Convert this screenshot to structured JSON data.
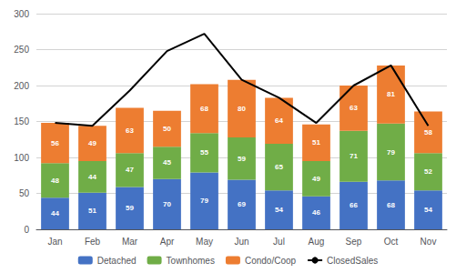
{
  "chart_data": {
    "type": "bar",
    "categories": [
      "Jan",
      "Feb",
      "Mar",
      "Apr",
      "May",
      "Jun",
      "Jul",
      "Aug",
      "Sep",
      "Oct",
      "Nov"
    ],
    "series": [
      {
        "name": "Detached",
        "type": "bar",
        "color": "#4472C4",
        "data_labels": true,
        "values": [
          44,
          51,
          59,
          70,
          79,
          69,
          54,
          46,
          66,
          68,
          54
        ]
      },
      {
        "name": "Townhomes",
        "type": "bar",
        "color": "#70AD47",
        "data_labels": true,
        "values": [
          48,
          44,
          47,
          45,
          55,
          59,
          65,
          49,
          71,
          79,
          52
        ]
      },
      {
        "name": "Condo/Coop",
        "type": "bar",
        "color": "#ED7D31",
        "data_labels": true,
        "values": [
          56,
          49,
          63,
          50,
          68,
          80,
          64,
          51,
          63,
          81,
          58
        ]
      },
      {
        "name": "ClosedSales",
        "type": "line",
        "color": "#000000",
        "data_labels": false,
        "values": [
          148,
          144,
          193,
          248,
          272,
          208,
          183,
          148,
          200,
          228,
          144
        ]
      }
    ],
    "stacked": true,
    "ylim": [
      0,
      300
    ],
    "yticks": [
      0,
      50,
      100,
      150,
      200,
      250,
      300
    ],
    "grid": true,
    "legend": "bottom"
  }
}
